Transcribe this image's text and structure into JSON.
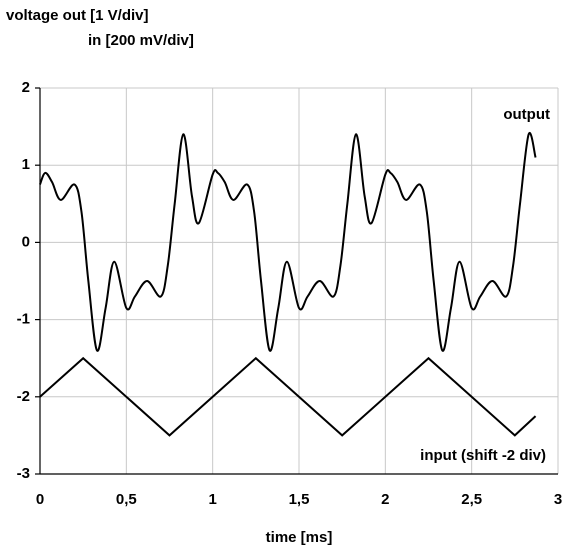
{
  "chart_data": {
    "type": "line",
    "ylabel": "voltage out [1 V/div]",
    "ylabel2": "in [200 mV/div]",
    "xlabel": "time [ms]",
    "xlim": [
      0,
      3
    ],
    "ylim": [
      -3,
      2
    ],
    "xticks": [
      0,
      {
        "value": 0.5,
        "label": "0,5"
      },
      1,
      {
        "value": 1.5,
        "label": "1,5"
      },
      2,
      {
        "value": 2.5,
        "label": "2,5"
      },
      3
    ],
    "yticks": [
      -3,
      -2,
      -1,
      0,
      1,
      2
    ],
    "grid": true,
    "series": [
      {
        "name": "output",
        "color": "#000000",
        "x": [
          0,
          0.03,
          0.07,
          0.12,
          0.2,
          0.24,
          0.28,
          0.33,
          0.38,
          0.43,
          0.5,
          0.55,
          0.62,
          0.7,
          0.74,
          0.78,
          0.83,
          0.88,
          0.92,
          1.0,
          1.03,
          1.07,
          1.12,
          1.2,
          1.24,
          1.28,
          1.33,
          1.38,
          1.43,
          1.5,
          1.55,
          1.62,
          1.7,
          1.74,
          1.78,
          1.83,
          1.88,
          1.92,
          2.0,
          2.03,
          2.07,
          2.12,
          2.2,
          2.24,
          2.28,
          2.33,
          2.38,
          2.43,
          2.5,
          2.55,
          2.62,
          2.7,
          2.74,
          2.78,
          2.83,
          2.87
        ],
        "values": [
          0.75,
          0.9,
          0.78,
          0.55,
          0.75,
          0.4,
          -0.5,
          -1.4,
          -0.85,
          -0.25,
          -0.85,
          -0.7,
          -0.5,
          -0.7,
          -0.3,
          0.5,
          1.4,
          0.6,
          0.25,
          0.88,
          0.9,
          0.78,
          0.55,
          0.75,
          0.4,
          -0.5,
          -1.4,
          -0.85,
          -0.25,
          -0.85,
          -0.7,
          -0.5,
          -0.7,
          -0.3,
          0.5,
          1.4,
          0.6,
          0.25,
          0.88,
          0.9,
          0.78,
          0.55,
          0.75,
          0.4,
          -0.5,
          -1.4,
          -0.85,
          -0.25,
          -0.85,
          -0.7,
          -0.5,
          -0.7,
          -0.3,
          0.5,
          1.4,
          1.1
        ]
      },
      {
        "name": "input (shift -2 div)",
        "color": "#000000",
        "x": [
          0,
          0.25,
          0.75,
          1.25,
          1.75,
          2.25,
          2.75,
          2.87
        ],
        "values": [
          -2,
          -1.5,
          -2.5,
          -1.5,
          -2.5,
          -1.5,
          -2.5,
          -2.25
        ]
      }
    ]
  }
}
